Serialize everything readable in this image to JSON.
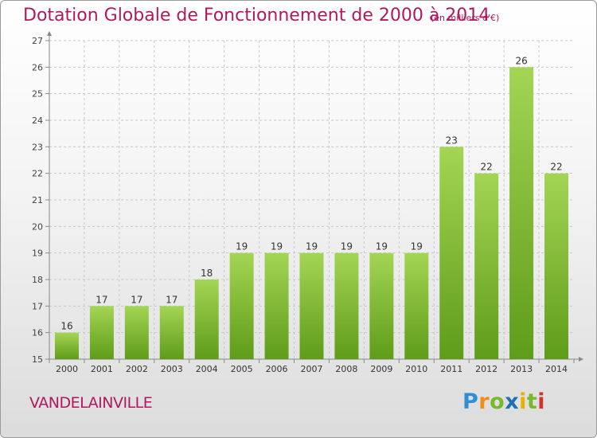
{
  "header": {
    "title": "Dotation Globale de Fonctionnement de 2000 à 2014",
    "unit": "(en milliers d'€)"
  },
  "footer": {
    "commune": "VANDELAINVILLE",
    "logo_text": "Proxiti",
    "logo_letters": [
      {
        "char": "P",
        "color": "#2e8fd4"
      },
      {
        "char": "r",
        "color": "#f28c1a"
      },
      {
        "char": "o",
        "color": "#7ab82b"
      },
      {
        "char": "x",
        "color": "#1f6fb5"
      },
      {
        "char": "i",
        "color": "#e8b000"
      },
      {
        "char": "t",
        "color": "#7ab82b"
      },
      {
        "char": "i",
        "color": "#d4322c"
      }
    ]
  },
  "colors": {
    "title": "#b0195e",
    "bar_light": "#a4d554",
    "bar_dark": "#5e9c19",
    "grid": "#c8c8c8"
  },
  "chart_data": {
    "type": "bar",
    "categories": [
      "2000",
      "2001",
      "2002",
      "2003",
      "2004",
      "2005",
      "2006",
      "2007",
      "2008",
      "2009",
      "2010",
      "2011",
      "2012",
      "2013",
      "2014"
    ],
    "values": [
      16,
      17,
      17,
      17,
      18,
      19,
      19,
      19,
      19,
      19,
      19,
      23,
      22,
      26,
      22
    ],
    "ylim": [
      15,
      27
    ],
    "yticks": [
      15,
      16,
      17,
      18,
      19,
      20,
      21,
      22,
      23,
      24,
      25,
      26,
      27
    ],
    "grid": true,
    "data_labels": true
  }
}
